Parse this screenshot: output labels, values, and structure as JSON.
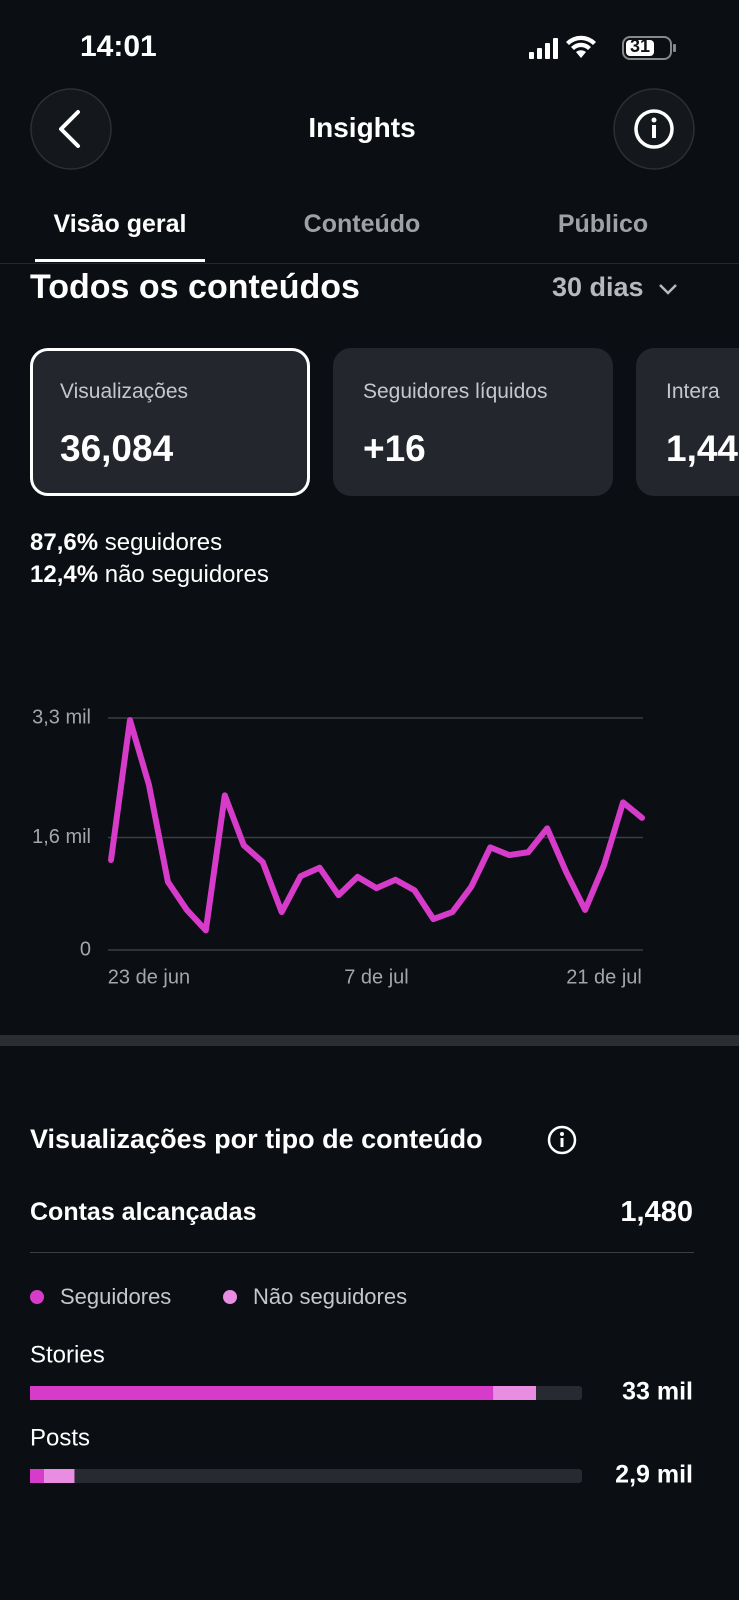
{
  "status_bar": {
    "time": "14:01",
    "battery": "31"
  },
  "header": {
    "title": "Insights"
  },
  "tabs": [
    "Visão geral",
    "Conteúdo",
    "Público"
  ],
  "section": {
    "title": "Todos os conteúdos",
    "period": "30 dias"
  },
  "cards": [
    {
      "label": "Visualizações",
      "value": "36,084"
    },
    {
      "label": "Seguidores líquidos",
      "value": "+16"
    },
    {
      "label": "Intera",
      "value": "1,44"
    }
  ],
  "breakdown": [
    {
      "value": "87,6%",
      "label": "seguidores"
    },
    {
      "value": "12,4%",
      "label": "não seguidores"
    }
  ],
  "reach": {
    "label": "Contas alcançadas",
    "value": "1,480"
  },
  "chart_data": [
    {
      "type": "line",
      "categories": [
        null,
        null,
        "23 de jun",
        null,
        null,
        null,
        null,
        null,
        null,
        null,
        null,
        null,
        null,
        null,
        "7 de jul",
        null,
        null,
        null,
        null,
        null,
        null,
        null,
        null,
        null,
        null,
        null,
        "21 de jul",
        null,
        null
      ],
      "values": [
        1280,
        3270,
        2350,
        970,
        570,
        280,
        2200,
        1490,
        1250,
        540,
        1050,
        1170,
        780,
        1040,
        880,
        1000,
        850,
        440,
        540,
        900,
        1460,
        1350,
        1390,
        1730,
        1110,
        570,
        1210,
        2100,
        1880
      ],
      "color": "#d63cc9",
      "ylim": [
        0,
        3300
      ],
      "yticks": [
        0,
        {
          "value": 1600,
          "label": "1,6 mil"
        },
        {
          "value": 3300,
          "label": "3,3 mil"
        }
      ],
      "grid": true
    },
    {
      "type": "hbar",
      "title": "Visualizações por tipo de conteúdo",
      "categories": [
        "Stories",
        "Posts"
      ],
      "series": [
        {
          "name": "Seguidores",
          "color": "#d63cc9",
          "values": [
            30200,
            900
          ]
        },
        {
          "name": "Não seguidores",
          "color": "#e88de2",
          "values": [
            2800,
            2000
          ]
        }
      ],
      "totals": [
        33000,
        2900
      ],
      "total_labels": [
        "33 mil",
        "2,9 mil"
      ],
      "xlim": [
        0,
        36000
      ]
    }
  ]
}
